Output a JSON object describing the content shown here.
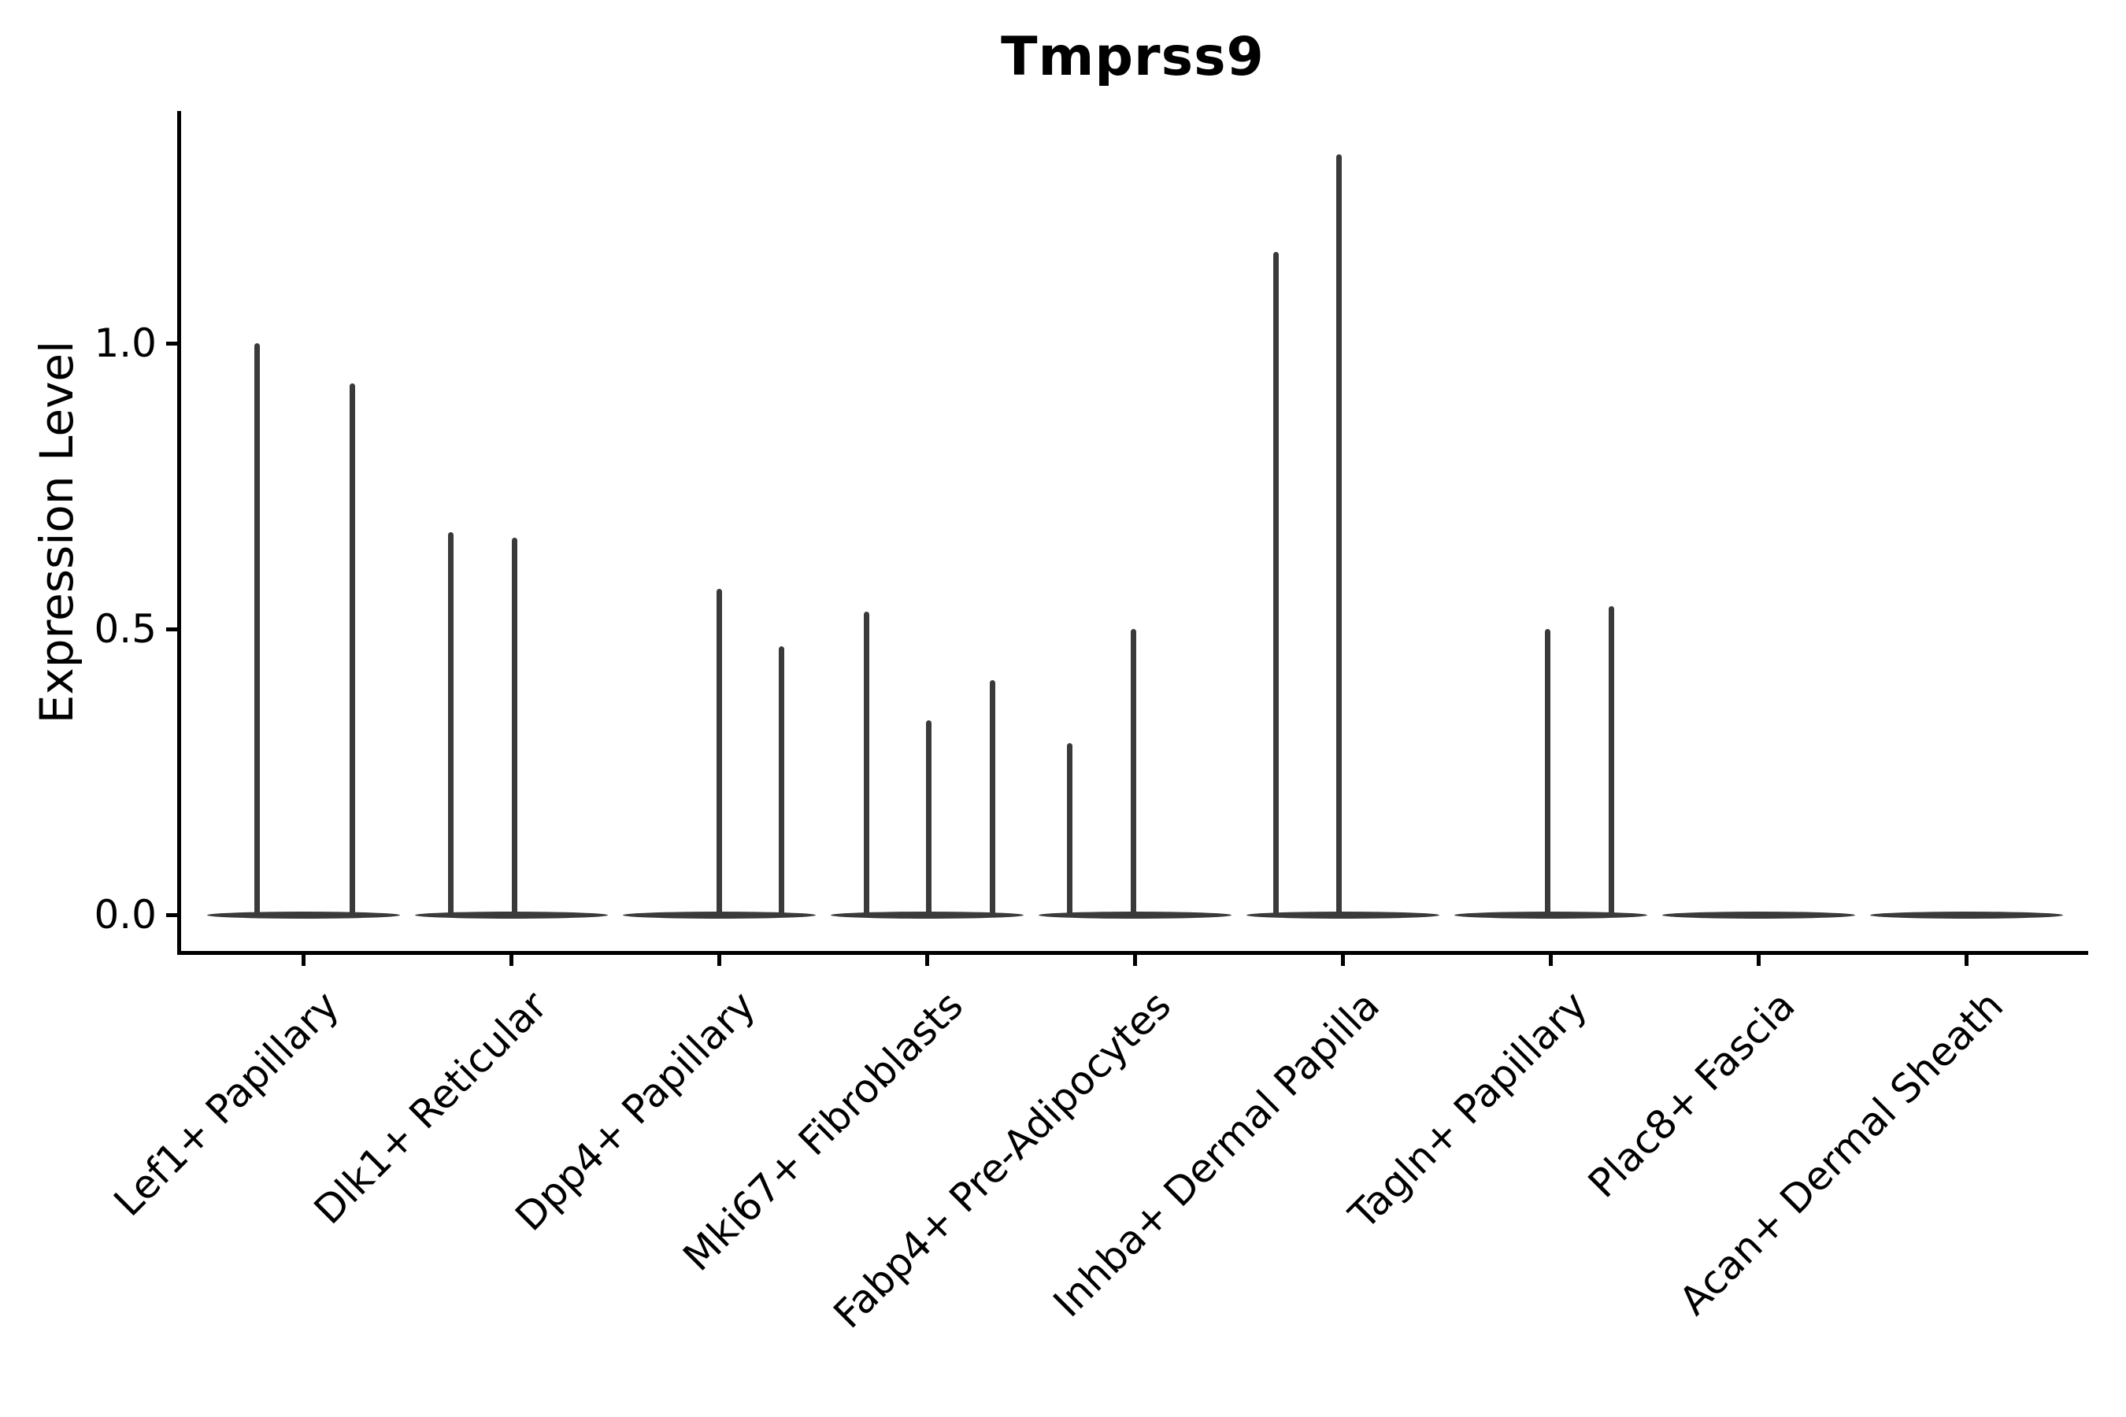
{
  "title": "Tmprss9",
  "y_axis": {
    "label": "Expression Level",
    "tick_labels": [
      "0.0",
      "0.5",
      "1.0"
    ]
  },
  "chart_data": {
    "type": "violin",
    "title": "Tmprss9",
    "xlabel": "",
    "ylabel": "Expression Level",
    "ylim": [
      -0.07,
      1.41
    ],
    "yticks": [
      0.0,
      0.5,
      1.0
    ],
    "ytick_labels": [
      "0.0",
      "0.5",
      "1.0"
    ],
    "grid": false,
    "legend": false,
    "violin_color": "#3a3a3a",
    "axis_color": "#000000",
    "categories": [
      "Lef1+ Papillary",
      "Dlk1+ Reticular",
      "Dpp4+ Papillary",
      "Mki67+ Fibroblasts",
      "Fabp4+ Pre-Adipocytes",
      "Inhba+ Dermal Papilla",
      "Tagln+ Papillary",
      "Plac8+ Fascia",
      "Acan+ Dermal Sheath"
    ],
    "groups": [
      {
        "category": "Lef1+ Papillary",
        "baseline_at_zero": true,
        "spikes": [
          {
            "dx": -0.22,
            "max": 1.0
          },
          {
            "dx": 0.235,
            "max": 0.93
          }
        ]
      },
      {
        "category": "Dlk1+ Reticular",
        "baseline_at_zero": true,
        "spikes": [
          {
            "dx": -0.29,
            "max": 0.67
          },
          {
            "dx": 0.015,
            "max": 0.66
          }
        ]
      },
      {
        "category": "Dpp4+ Papillary",
        "baseline_at_zero": true,
        "spikes": [
          {
            "dx": 0.0,
            "max": 0.57
          },
          {
            "dx": 0.3,
            "max": 0.47
          }
        ]
      },
      {
        "category": "Mki67+ Fibroblasts",
        "baseline_at_zero": true,
        "spikes": [
          {
            "dx": -0.29,
            "max": 0.53
          },
          {
            "dx": 0.01,
            "max": 0.34
          },
          {
            "dx": 0.315,
            "max": 0.41
          }
        ]
      },
      {
        "category": "Fabp4+ Pre-Adipocytes",
        "baseline_at_zero": true,
        "spikes": [
          {
            "dx": -0.315,
            "max": 0.3
          },
          {
            "dx": -0.008,
            "max": 0.5
          }
        ]
      },
      {
        "category": "Inhba+ Dermal Papilla",
        "baseline_at_zero": true,
        "spikes": [
          {
            "dx": -0.32,
            "max": 1.16
          },
          {
            "dx": -0.02,
            "max": 1.33
          }
        ]
      },
      {
        "category": "Tagln+ Papillary",
        "baseline_at_zero": true,
        "spikes": [
          {
            "dx": -0.015,
            "max": 0.5
          },
          {
            "dx": 0.29,
            "max": 0.54
          }
        ]
      },
      {
        "category": "Plac8+ Fascia",
        "baseline_at_zero": true,
        "spikes": []
      },
      {
        "category": "Acan+ Dermal Sheath",
        "baseline_at_zero": true,
        "spikes": []
      }
    ]
  }
}
